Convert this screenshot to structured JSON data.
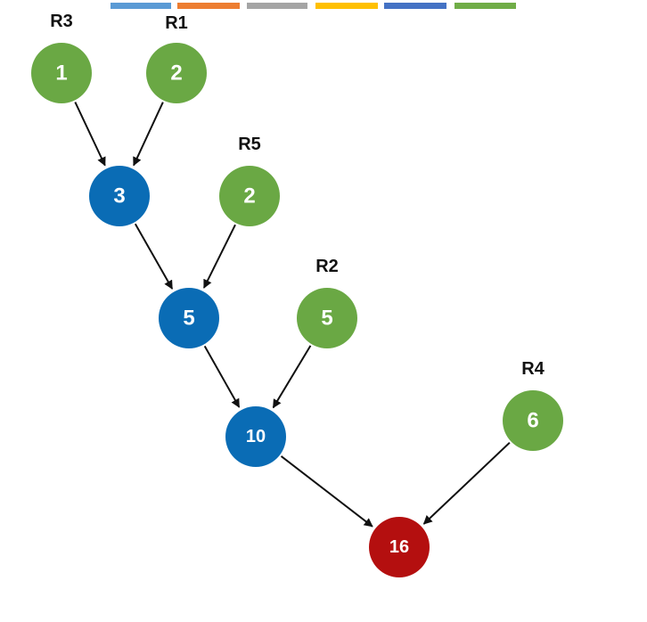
{
  "colors": {
    "leaf": "#6aa844",
    "internal": "#0a6cb5",
    "root": "#b40f0f",
    "edge": "#111111",
    "top_bar": [
      "#5b9bd5",
      "#ed7d31",
      "#a5a5a5",
      "#ffc000",
      "#4472c4",
      "#70ad47"
    ]
  },
  "nodes": [
    {
      "id": "leaf-r3",
      "value": "1",
      "tag": "R3",
      "kind": "leaf"
    },
    {
      "id": "leaf-r1",
      "value": "2",
      "tag": "R1",
      "kind": "leaf"
    },
    {
      "id": "internal-3",
      "value": "3",
      "tag": "",
      "kind": "internal"
    },
    {
      "id": "leaf-r5",
      "value": "2",
      "tag": "R5",
      "kind": "leaf"
    },
    {
      "id": "internal-5",
      "value": "5",
      "tag": "",
      "kind": "internal"
    },
    {
      "id": "leaf-r2",
      "value": "5",
      "tag": "R2",
      "kind": "leaf"
    },
    {
      "id": "internal-10",
      "value": "10",
      "tag": "",
      "kind": "internal"
    },
    {
      "id": "leaf-r4",
      "value": "6",
      "tag": "R4",
      "kind": "leaf"
    },
    {
      "id": "root-16",
      "value": "16",
      "tag": "",
      "kind": "root"
    }
  ],
  "edges": [
    {
      "from": "leaf-r3",
      "to": "internal-3"
    },
    {
      "from": "leaf-r1",
      "to": "internal-3"
    },
    {
      "from": "internal-3",
      "to": "internal-5"
    },
    {
      "from": "leaf-r5",
      "to": "internal-5"
    },
    {
      "from": "internal-5",
      "to": "internal-10"
    },
    {
      "from": "leaf-r2",
      "to": "internal-10"
    },
    {
      "from": "internal-10",
      "to": "root-16"
    },
    {
      "from": "leaf-r4",
      "to": "root-16"
    }
  ]
}
